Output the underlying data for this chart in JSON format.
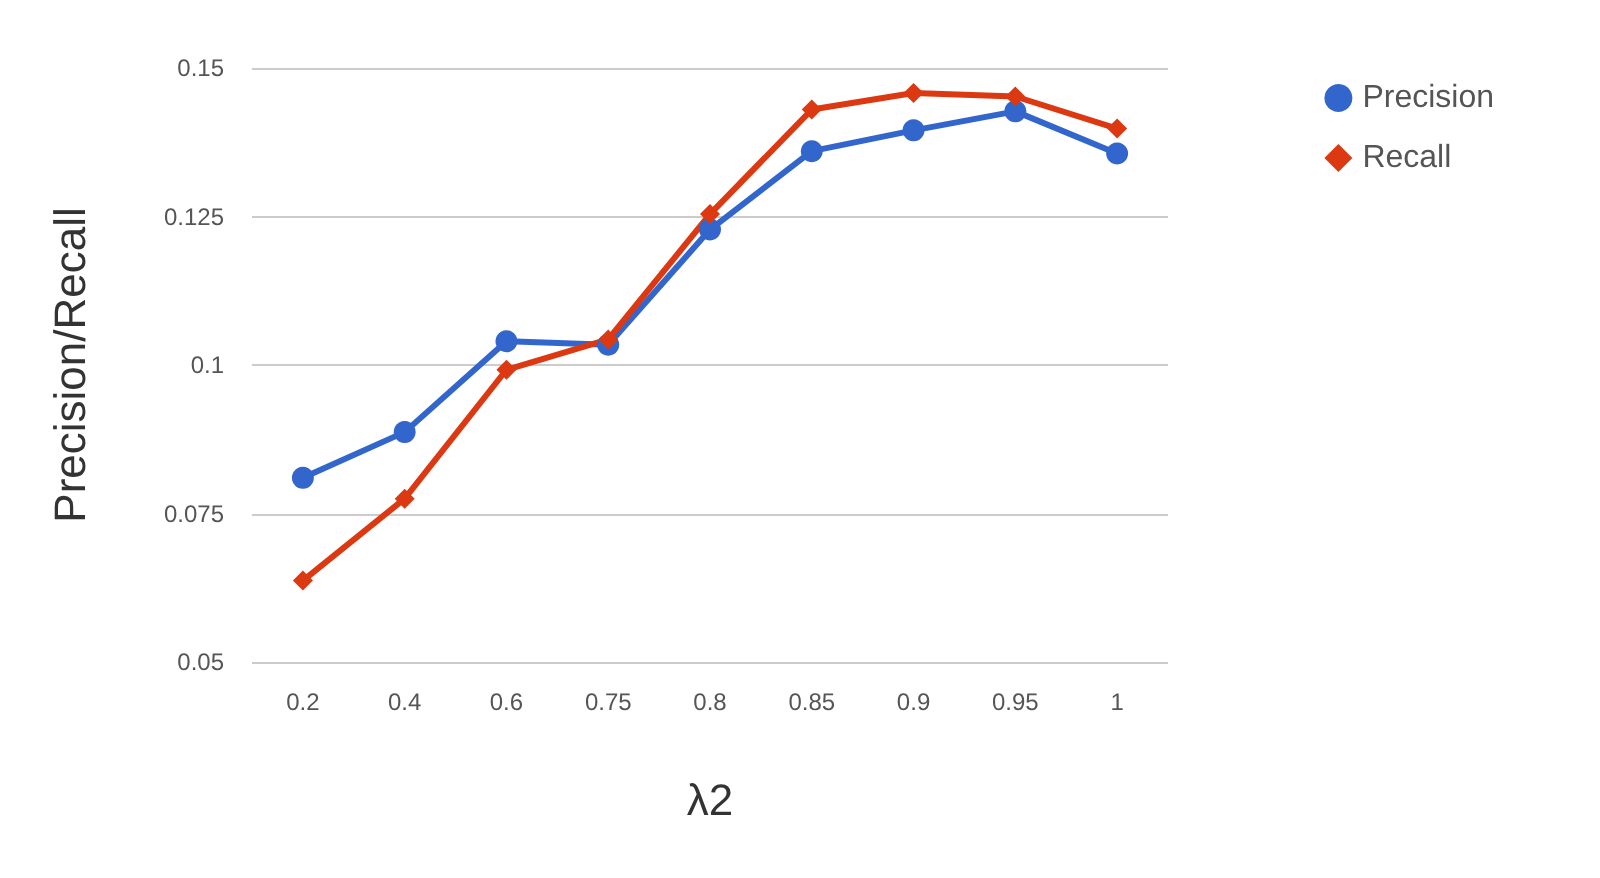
{
  "chart_data": {
    "type": "line",
    "xlabel": "λ2",
    "ylabel": "Precision/Recall",
    "categories": [
      "0.2",
      "0.4",
      "0.6",
      "0.75",
      "0.8",
      "0.85",
      "0.9",
      "0.95",
      "1"
    ],
    "series": [
      {
        "name": "Precision",
        "color": "#3366cc",
        "marker": "circle",
        "values": [
          0.081,
          0.0887,
          0.104,
          0.1034,
          0.1228,
          0.136,
          0.1395,
          0.1427,
          0.1356
        ]
      },
      {
        "name": "Recall",
        "color": "#dc3912",
        "marker": "diamond",
        "values": [
          0.0637,
          0.0775,
          0.0992,
          0.1043,
          0.1254,
          0.143,
          0.1458,
          0.1452,
          0.1398
        ]
      }
    ],
    "ylim": [
      0.05,
      0.15
    ],
    "yticks": [
      0.05,
      0.075,
      0.1,
      0.125,
      0.15
    ],
    "grid": "y",
    "legend": "top right",
    "line_style": "solid"
  }
}
